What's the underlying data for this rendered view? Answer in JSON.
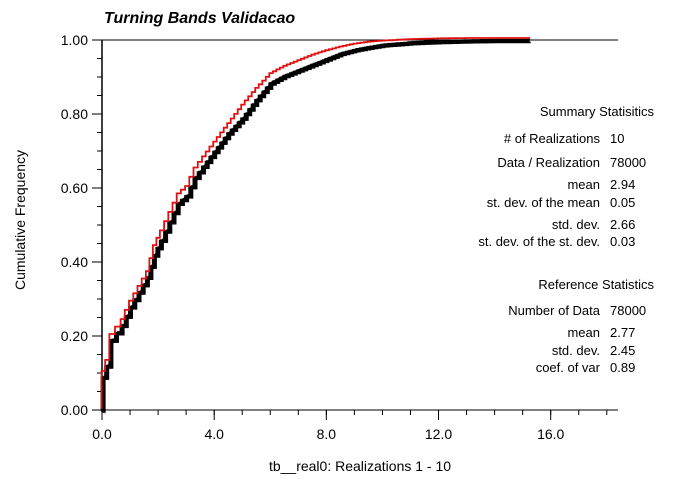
{
  "chart_data": {
    "type": "line",
    "title": "Turning Bands Validacao",
    "xlabel": "tb__real0:  Realizations    1 - 10",
    "ylabel": "Cumulative Frequency",
    "xlim": [
      0.0,
      18.4
    ],
    "ylim": [
      0.0,
      1.0
    ],
    "x_ticks": [
      "0.0",
      "4.0",
      "8.0",
      "12.0",
      "16.0"
    ],
    "x_tick_values": [
      0,
      4,
      8,
      12,
      16
    ],
    "y_ticks": [
      "0.00",
      "0.20",
      "0.40",
      "0.60",
      "0.80",
      "1.00"
    ],
    "y_tick_values": [
      0,
      0.2,
      0.4,
      0.6,
      0.8,
      1.0
    ],
    "grid": false,
    "colors": {
      "realizations": "#000000",
      "reference": "#e01010"
    },
    "series": [
      {
        "role": "realizations",
        "x": [
          0,
          0.02,
          0.15,
          0.3,
          0.5,
          0.7,
          1.0,
          1.3,
          1.6,
          1.85,
          2.1,
          2.4,
          2.7,
          3.0,
          3.3,
          3.6,
          4.0,
          4.5,
          5.0,
          5.5,
          6.0,
          6.5,
          7.0,
          7.5,
          8.0,
          8.5,
          9.0,
          9.5,
          10.0,
          11.0,
          12.0,
          13.0,
          14.0,
          15.2
        ],
        "y": [
          0,
          0.09,
          0.12,
          0.19,
          0.21,
          0.23,
          0.28,
          0.32,
          0.36,
          0.42,
          0.46,
          0.51,
          0.56,
          0.58,
          0.63,
          0.66,
          0.7,
          0.75,
          0.79,
          0.84,
          0.885,
          0.905,
          0.92,
          0.935,
          0.95,
          0.965,
          0.975,
          0.982,
          0.988,
          0.994,
          0.997,
          0.999,
          1.0,
          1.0
        ]
      },
      {
        "role": "reference",
        "x": [
          0,
          0.02,
          0.15,
          0.3,
          0.5,
          0.7,
          1.0,
          1.3,
          1.6,
          1.85,
          2.1,
          2.4,
          2.7,
          3.0,
          3.3,
          3.6,
          4.0,
          4.5,
          5.0,
          5.5,
          6.0,
          6.5,
          7.0,
          7.5,
          8.0,
          8.5,
          9.0,
          9.5,
          10.0,
          11.0,
          12.0,
          13.0,
          14.0,
          15.3
        ],
        "y": [
          0,
          0.1,
          0.13,
          0.2,
          0.22,
          0.24,
          0.29,
          0.33,
          0.37,
          0.44,
          0.48,
          0.53,
          0.58,
          0.6,
          0.65,
          0.68,
          0.72,
          0.77,
          0.82,
          0.865,
          0.905,
          0.925,
          0.94,
          0.955,
          0.967,
          0.977,
          0.985,
          0.99,
          0.993,
          0.997,
          0.999,
          1.0,
          1.0,
          1.0
        ]
      }
    ]
  },
  "summary": {
    "heading": "Summary Statisitics",
    "rows": [
      {
        "label": "# of Realizations",
        "value": "10"
      },
      {
        "label": "Data / Realization",
        "value": "78000"
      },
      {
        "label": "mean",
        "value": "2.94"
      },
      {
        "label": "st. dev. of the mean",
        "value": "0.05"
      },
      {
        "label": "std. dev.",
        "value": "2.66"
      },
      {
        "label": "st. dev. of the st. dev.",
        "value": "0.03"
      }
    ]
  },
  "reference": {
    "heading": "Reference Statistics",
    "rows": [
      {
        "label": "Number of Data",
        "value": "78000"
      },
      {
        "label": "mean",
        "value": "2.77"
      },
      {
        "label": "std. dev.",
        "value": "2.45"
      },
      {
        "label": "coef. of var",
        "value": "0.89"
      }
    ]
  }
}
